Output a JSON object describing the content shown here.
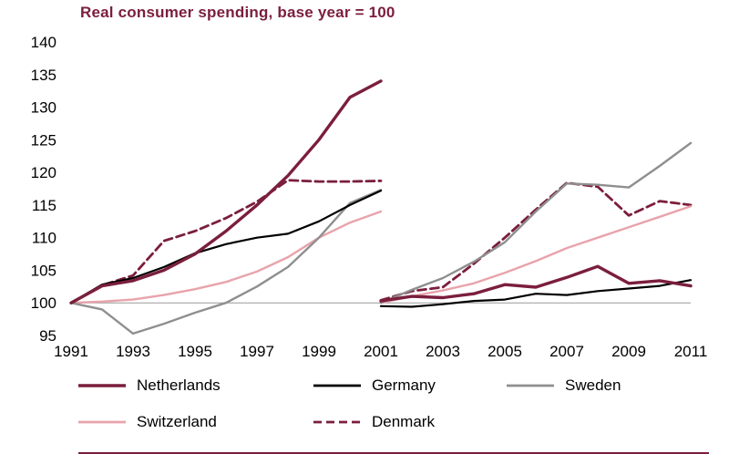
{
  "title": "Real consumer spending, base year = 100",
  "colors": {
    "title": "#7b1e3c",
    "tick": "#000000",
    "baseline": "#999999",
    "bottom_rule": "#7b1e3c",
    "background": "#ffffff"
  },
  "chart_data": {
    "type": "line",
    "title": "Real consumer spending, base year = 100",
    "xlim": [
      1991,
      2011
    ],
    "ylim": [
      95,
      140
    ],
    "yticks": [
      95,
      100,
      105,
      110,
      115,
      120,
      125,
      130,
      135,
      140
    ],
    "xticks": [
      1991,
      1993,
      1995,
      1997,
      1999,
      2001,
      2003,
      2005,
      2007,
      2009,
      2011
    ],
    "baseline": 100,
    "grid": false,
    "legend_position": "bottom",
    "x_segment1": [
      1991,
      1992,
      1993,
      1994,
      1995,
      1996,
      1997,
      1998,
      1999,
      2000,
      2001
    ],
    "x_segment2": [
      2001,
      2002,
      2003,
      2004,
      2005,
      2006,
      2007,
      2008,
      2009,
      2010,
      2011
    ],
    "series": [
      {
        "name": "Netherlands",
        "color": "#7b1e3c",
        "width": 3.4,
        "dash": null,
        "segment1": [
          100,
          102.6,
          103.4,
          105.0,
          107.5,
          111.0,
          115.0,
          119.5,
          125.0,
          131.5,
          134.0
        ],
        "segment2": [
          100.3,
          101.0,
          100.8,
          101.4,
          102.8,
          102.4,
          103.9,
          105.6,
          103.0,
          103.4,
          102.6
        ]
      },
      {
        "name": "Germany",
        "color": "#000000",
        "width": 2.2,
        "dash": null,
        "segment1": [
          100,
          102.8,
          103.8,
          105.5,
          107.6,
          109.0,
          110.0,
          110.6,
          112.5,
          115.0,
          117.2
        ],
        "segment2": [
          99.5,
          99.4,
          99.8,
          100.3,
          100.5,
          101.4,
          101.2,
          101.8,
          102.2,
          102.6,
          103.5
        ]
      },
      {
        "name": "Sweden",
        "color": "#8f8f8f",
        "width": 2.4,
        "dash": null,
        "segment1": [
          100,
          99.0,
          95.3,
          96.8,
          98.5,
          100.0,
          102.5,
          105.5,
          110.0,
          115.3,
          117.3
        ],
        "segment2": [
          100.0,
          102.0,
          103.8,
          106.3,
          109.3,
          114.0,
          118.3,
          118.1,
          117.7,
          121.0,
          124.5
        ]
      },
      {
        "name": "Switzerland",
        "color": "#e8a3ab",
        "width": 2.4,
        "dash": null,
        "segment1": [
          100,
          100.2,
          100.5,
          101.2,
          102.1,
          103.2,
          104.8,
          107.0,
          110.0,
          112.3,
          114.0
        ],
        "segment2": [
          100.0,
          101.0,
          101.9,
          103.0,
          104.6,
          106.4,
          108.4,
          110.0,
          111.6,
          113.2,
          114.8
        ]
      },
      {
        "name": "Denmark",
        "color": "#7b1e3c",
        "width": 2.8,
        "dash": "9 5",
        "segment1": [
          100,
          102.7,
          104.2,
          109.5,
          111.0,
          113.0,
          115.5,
          118.8,
          118.6,
          118.6,
          118.7
        ],
        "segment2": [
          100.4,
          101.8,
          102.4,
          106.0,
          110.0,
          114.3,
          118.4,
          117.8,
          113.4,
          115.6,
          115.0
        ]
      }
    ]
  }
}
